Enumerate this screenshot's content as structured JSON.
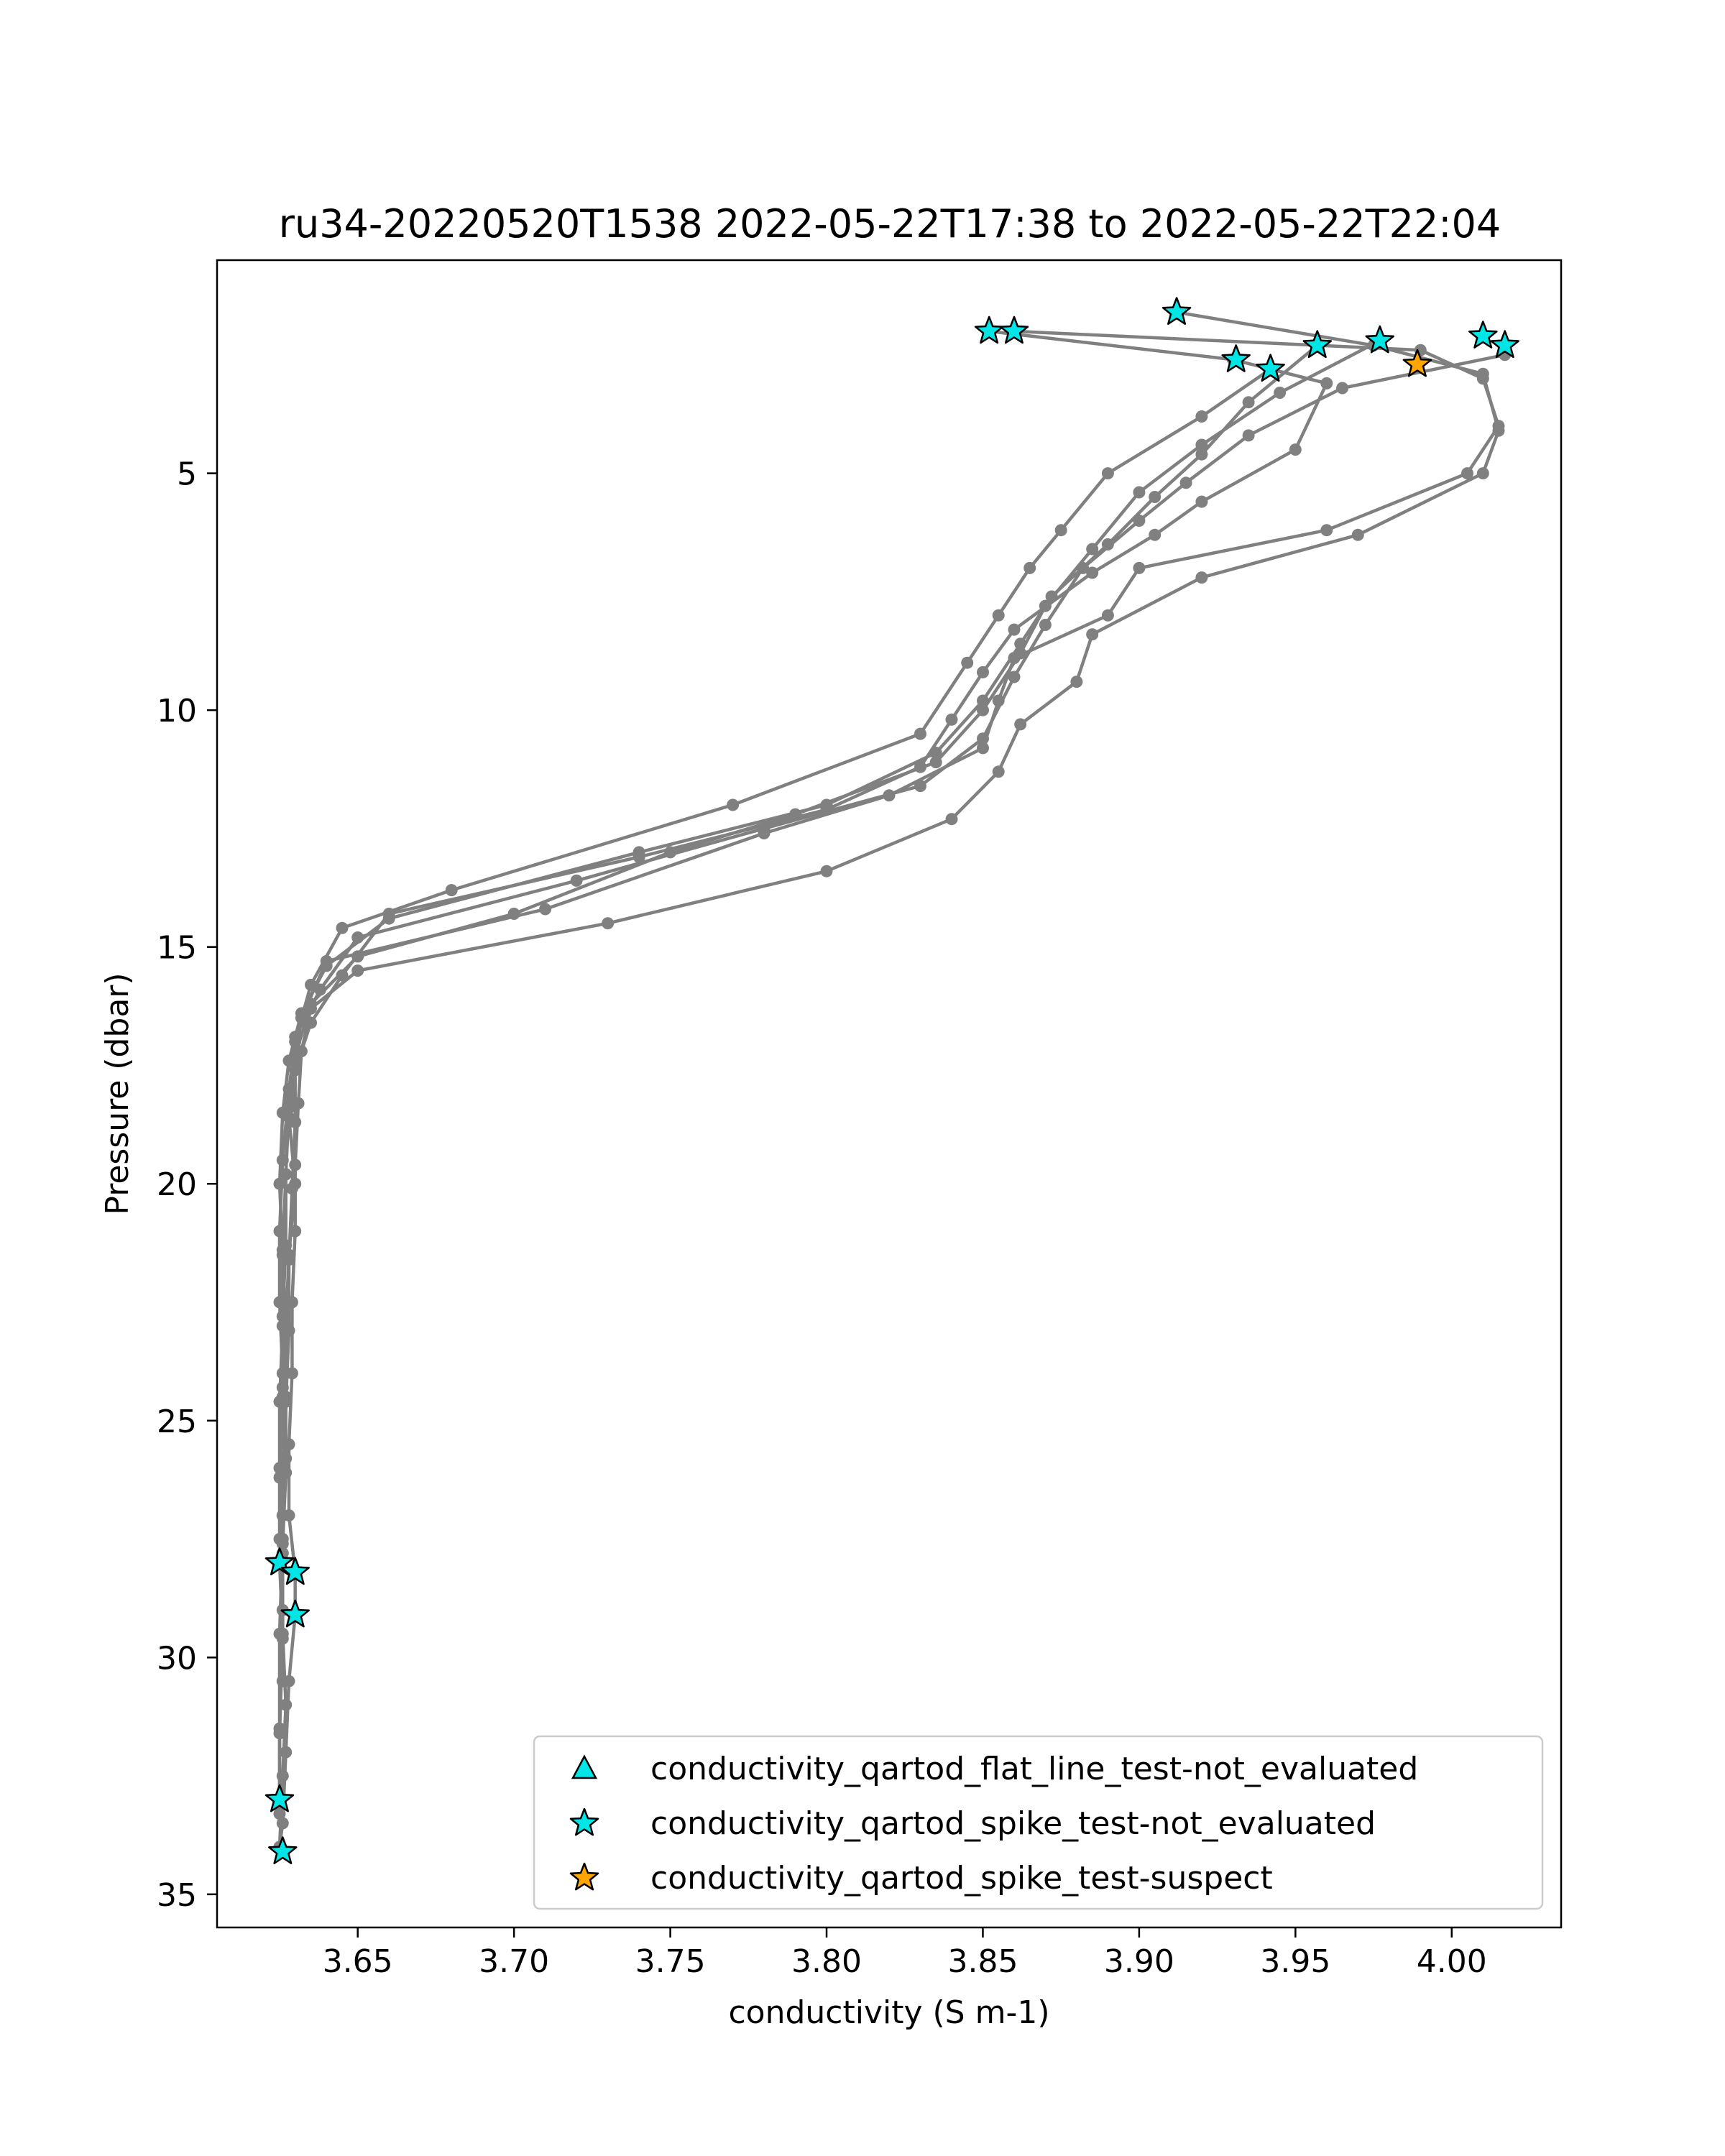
{
  "chart_data": {
    "type": "line",
    "title": "ru34-20220520T1538 2022-05-22T17:38 to 2022-05-22T22:04",
    "xlabel": "conductivity (S m-1)",
    "ylabel": "Pressure (dbar)",
    "xlim": [
      3.605,
      4.035
    ],
    "ylim": [
      35.7,
      0.5
    ],
    "y_inverted": true,
    "xticks": [
      "3.65",
      "3.70",
      "3.75",
      "3.80",
      "3.85",
      "3.90",
      "3.95",
      "4.00"
    ],
    "xtick_values": [
      3.65,
      3.7,
      3.75,
      3.8,
      3.85,
      3.9,
      3.95,
      4.0
    ],
    "yticks": [
      "5",
      "10",
      "15",
      "20",
      "25",
      "30",
      "35"
    ],
    "ytick_values": [
      5,
      10,
      15,
      20,
      25,
      30,
      35
    ],
    "grid": false,
    "line_color": "#808080",
    "legend_position": "lower-right",
    "series": [
      {
        "profile": 1,
        "x": [
          3.852,
          3.93,
          3.96,
          3.95,
          3.92,
          3.905,
          3.885,
          3.86,
          3.85,
          3.84,
          3.83,
          3.8,
          3.74,
          3.66,
          3.645,
          3.635,
          3.63,
          3.628,
          3.63,
          3.628,
          3.627,
          3.627,
          3.626,
          3.626,
          3.625,
          3.625,
          3.625
        ],
        "y": [
          2.0,
          2.6,
          3.1,
          4.5,
          5.6,
          6.3,
          7.1,
          8.3,
          9.2,
          10.2,
          11.2,
          12.1,
          13.1,
          14.3,
          15.6,
          16.6,
          17.6,
          18.6,
          20.0,
          21.5,
          23.0,
          24.5,
          26.0,
          27.5,
          29.5,
          31.5,
          33.3
        ]
      },
      {
        "profile": 2,
        "x": [
          3.86,
          3.99,
          4.01,
          4.015,
          4.005,
          3.96,
          3.9,
          3.89,
          3.86,
          3.855,
          3.85,
          3.82,
          3.78,
          3.71,
          3.64,
          3.632,
          3.63,
          3.63,
          3.629,
          3.628,
          3.628,
          3.627,
          3.627,
          3.626,
          3.626,
          3.625,
          3.625
        ],
        "y": [
          2.0,
          2.4,
          3.0,
          4.0,
          5.0,
          6.2,
          7.0,
          8.0,
          8.9,
          9.8,
          10.8,
          11.8,
          12.6,
          14.2,
          15.3,
          16.5,
          17.4,
          18.7,
          20.1,
          21.6,
          23.1,
          24.6,
          26.1,
          27.6,
          29.6,
          31.6,
          33.1
        ]
      },
      {
        "profile": 3,
        "x": [
          3.912,
          3.975,
          4.01,
          4.015,
          4.01,
          3.97,
          3.92,
          3.885,
          3.88,
          3.862,
          3.855,
          3.84,
          3.8,
          3.73,
          3.65,
          3.635,
          3.632,
          3.631,
          3.63,
          3.63,
          3.629,
          3.629,
          3.628,
          3.628,
          3.63,
          3.63,
          3.628,
          3.627,
          3.626,
          3.625
        ],
        "y": [
          1.6,
          2.3,
          2.9,
          4.1,
          5.0,
          6.3,
          7.2,
          8.4,
          9.4,
          10.3,
          11.3,
          12.3,
          13.4,
          14.5,
          15.5,
          16.3,
          17.2,
          18.3,
          19.6,
          21.0,
          22.5,
          24.0,
          25.5,
          27.0,
          28.2,
          29.1,
          30.5,
          32.0,
          33.5,
          34.0
        ]
      },
      {
        "profile": 4,
        "x": [
          3.942,
          3.92,
          3.89,
          3.875,
          3.865,
          3.855,
          3.845,
          3.83,
          3.77,
          3.68,
          3.645,
          3.635,
          3.63,
          3.628,
          3.626,
          3.625,
          3.625,
          3.626,
          3.627,
          3.626,
          3.625,
          3.626,
          3.627,
          3.626,
          3.625
        ],
        "y": [
          2.8,
          3.8,
          5.0,
          6.2,
          7.0,
          8.0,
          9.0,
          10.5,
          12.0,
          13.8,
          14.6,
          15.8,
          17.0,
          18.0,
          19.5,
          21.0,
          22.5,
          24.0,
          25.5,
          27.0,
          28.0,
          29.5,
          31.0,
          32.5,
          34.0
        ]
      },
      {
        "profile": 5,
        "x": [
          3.957,
          3.935,
          3.92,
          3.905,
          3.89,
          3.872,
          3.862,
          3.85,
          3.835,
          3.8,
          3.74,
          3.66,
          3.64,
          3.632,
          3.628,
          3.626,
          3.625,
          3.626,
          3.627,
          3.626,
          3.625,
          3.625,
          3.626,
          3.626
        ],
        "y": [
          2.3,
          3.5,
          4.6,
          5.5,
          6.5,
          7.6,
          8.6,
          9.8,
          10.9,
          12.0,
          13.0,
          14.4,
          15.4,
          16.4,
          17.4,
          18.5,
          20.0,
          21.5,
          23.0,
          24.5,
          26.0,
          27.5,
          29.0,
          30.5
        ]
      },
      {
        "profile": 6,
        "x": [
          3.977,
          3.945,
          3.92,
          3.9,
          3.885,
          3.87,
          3.862,
          3.85,
          3.835,
          3.79,
          3.75,
          3.7,
          3.65,
          3.635,
          3.63,
          3.628,
          3.627,
          3.627,
          3.626,
          3.626,
          3.627,
          3.626
        ],
        "y": [
          2.2,
          3.3,
          4.4,
          5.4,
          6.6,
          7.8,
          8.8,
          10.0,
          11.1,
          12.2,
          13.0,
          14.3,
          15.2,
          16.2,
          17.3,
          18.4,
          19.8,
          21.3,
          22.8,
          24.3,
          25.8,
          27.0
        ]
      },
      {
        "profile": 7,
        "x": [
          4.017,
          3.965,
          3.935,
          3.915,
          3.9,
          3.882,
          3.87,
          3.86,
          3.85,
          3.83,
          3.78,
          3.72,
          3.65,
          3.638,
          3.63,
          3.628,
          3.627,
          3.626,
          3.626,
          3.625,
          3.625,
          3.626
        ],
        "y": [
          2.5,
          3.2,
          4.2,
          5.2,
          6.0,
          7.0,
          8.2,
          9.3,
          10.6,
          11.6,
          12.5,
          13.6,
          14.8,
          15.9,
          16.9,
          18.2,
          19.8,
          21.4,
          23.0,
          24.6,
          26.2,
          27.8
        ]
      }
    ],
    "flag_markers": [
      {
        "legend": "conductivity_qartod_spike_test-not_evaluated",
        "shape": "star",
        "color": "#00e5e5",
        "points": [
          [
            3.852,
            2.0
          ],
          [
            3.86,
            2.0
          ],
          [
            3.912,
            1.6
          ],
          [
            3.931,
            2.6
          ],
          [
            3.942,
            2.8
          ],
          [
            3.957,
            2.3
          ],
          [
            3.977,
            2.2
          ],
          [
            4.01,
            2.1
          ],
          [
            4.017,
            2.3
          ],
          [
            3.625,
            28.0
          ],
          [
            3.63,
            28.2
          ],
          [
            3.63,
            29.1
          ],
          [
            3.625,
            33.0
          ],
          [
            3.626,
            34.1
          ]
        ]
      },
      {
        "legend": "conductivity_qartod_spike_test-suspect",
        "shape": "star",
        "color": "#ffa500",
        "points": [
          [
            3.989,
            2.7
          ]
        ]
      }
    ]
  },
  "legend": {
    "entries": [
      {
        "label": "conductivity_qartod_flat_line_test-not_evaluated",
        "shape": "triangle",
        "color": "#00e5e5"
      },
      {
        "label": "conductivity_qartod_spike_test-not_evaluated",
        "shape": "star",
        "color": "#00e5e5"
      },
      {
        "label": "conductivity_qartod_spike_test-suspect",
        "shape": "star",
        "color": "#ffa500"
      }
    ]
  }
}
